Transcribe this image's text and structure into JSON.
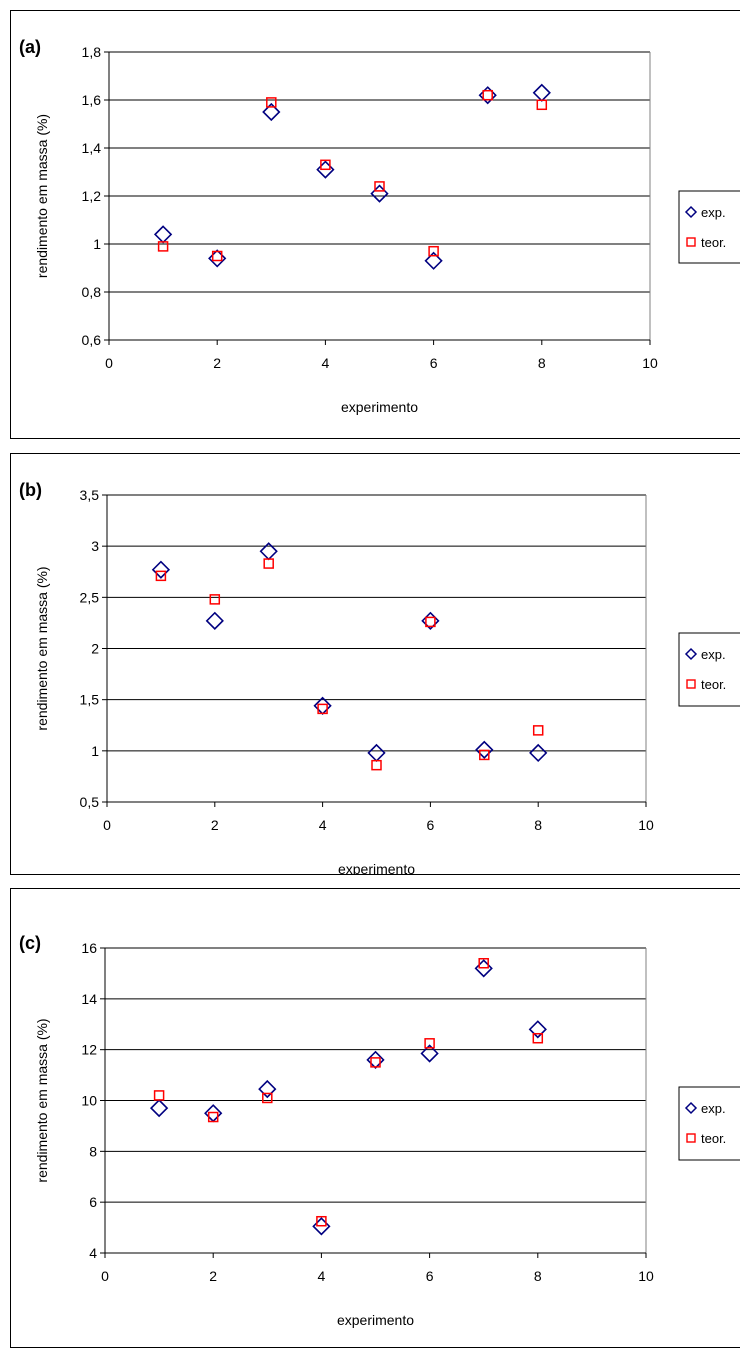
{
  "chart_data": [
    {
      "type": "scatter",
      "panel_label": "(a)",
      "xlabel": "experimento",
      "ylabel": "rendimento em massa (%)",
      "xlim": [
        0,
        10
      ],
      "ylim": [
        0.6,
        1.8
      ],
      "xticks": [
        "0",
        "2",
        "4",
        "6",
        "8",
        "10"
      ],
      "yticks": [
        "0,6",
        "0,8",
        "1",
        "1,2",
        "1,4",
        "1,6",
        "1,8"
      ],
      "grid": true,
      "legend": "right",
      "series": [
        {
          "name": "exp.",
          "marker": "diamond",
          "color": "#000080",
          "x": [
            1,
            2,
            3,
            4,
            5,
            6,
            7,
            8
          ],
          "y": [
            1.04,
            0.94,
            1.55,
            1.31,
            1.21,
            0.93,
            1.62,
            1.63
          ]
        },
        {
          "name": "teor.",
          "marker": "square",
          "color": "#ff0000",
          "x": [
            1,
            2,
            3,
            4,
            5,
            6,
            7,
            8
          ],
          "y": [
            0.99,
            0.95,
            1.59,
            1.33,
            1.24,
            0.97,
            1.62,
            1.58
          ]
        }
      ]
    },
    {
      "type": "scatter",
      "panel_label": "(b)",
      "xlabel": "experimento",
      "ylabel": "rendimento em massa (%)",
      "xlim": [
        0,
        10
      ],
      "ylim": [
        0.5,
        3.5
      ],
      "xticks": [
        "0",
        "2",
        "4",
        "6",
        "8",
        "10"
      ],
      "yticks": [
        "0,5",
        "1",
        "1,5",
        "2",
        "2,5",
        "3",
        "3,5"
      ],
      "grid": true,
      "legend": "right",
      "series": [
        {
          "name": "exp.",
          "marker": "diamond",
          "color": "#000080",
          "x": [
            1,
            2,
            3,
            4,
            5,
            6,
            7,
            8
          ],
          "y": [
            2.77,
            2.27,
            2.95,
            1.44,
            0.98,
            2.27,
            1.01,
            0.98
          ]
        },
        {
          "name": "teor.",
          "marker": "square",
          "color": "#ff0000",
          "x": [
            1,
            2,
            3,
            4,
            5,
            6,
            7,
            8
          ],
          "y": [
            2.71,
            2.48,
            2.83,
            1.41,
            0.86,
            2.26,
            0.96,
            1.2
          ]
        }
      ]
    },
    {
      "type": "scatter",
      "panel_label": "(c)",
      "xlabel": "experimento",
      "ylabel": "rendimento em massa (%)",
      "xlim": [
        0,
        10
      ],
      "ylim": [
        4,
        16
      ],
      "xticks": [
        "0",
        "2",
        "4",
        "6",
        "8",
        "10"
      ],
      "yticks": [
        "4",
        "6",
        "8",
        "10",
        "12",
        "14",
        "16"
      ],
      "grid": true,
      "legend": "right",
      "series": [
        {
          "name": "exp.",
          "marker": "diamond",
          "color": "#000080",
          "x": [
            1,
            2,
            3,
            4,
            5,
            6,
            7,
            8
          ],
          "y": [
            9.7,
            9.5,
            10.45,
            5.05,
            11.6,
            11.85,
            15.2,
            12.8
          ]
        },
        {
          "name": "teor.",
          "marker": "square",
          "color": "#ff0000",
          "x": [
            1,
            2,
            3,
            4,
            5,
            6,
            7,
            8
          ],
          "y": [
            10.2,
            9.35,
            10.1,
            5.25,
            11.5,
            12.25,
            15.4,
            12.45
          ]
        }
      ]
    }
  ]
}
